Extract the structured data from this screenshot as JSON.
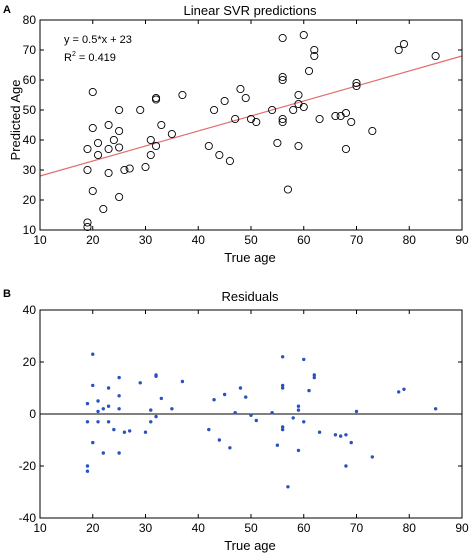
{
  "figure": {
    "panel_a_letter": "A",
    "panel_b_letter": "B"
  },
  "chart_data": [
    {
      "type": "scatter",
      "title": "Linear SVR predictions",
      "xlabel": "True age",
      "ylabel": "Predicted Age",
      "xlim": [
        10,
        90
      ],
      "ylim": [
        10,
        80
      ],
      "xticks": [
        10,
        20,
        30,
        40,
        50,
        60,
        70,
        80,
        90
      ],
      "yticks": [
        10,
        20,
        30,
        40,
        50,
        60,
        70,
        80
      ],
      "grid": false,
      "legend": "none",
      "marker": "open-circle",
      "marker_color": "#000000",
      "annotation_equation": "y = 0.5*x + 23",
      "annotation_r2_base": "R",
      "annotation_r2_exp": "2",
      "annotation_r2_value": " = 0.419",
      "fit_line": {
        "slope": 0.5,
        "intercept": 23,
        "color": "#e07070"
      },
      "points": [
        [
          19,
          12.5
        ],
        [
          19,
          11
        ],
        [
          19,
          30
        ],
        [
          19,
          37
        ],
        [
          20,
          56
        ],
        [
          20,
          44
        ],
        [
          20,
          23
        ],
        [
          21,
          35
        ],
        [
          21,
          39
        ],
        [
          22,
          17
        ],
        [
          23,
          45
        ],
        [
          23,
          37
        ],
        [
          23,
          29
        ],
        [
          24,
          40
        ],
        [
          25,
          50
        ],
        [
          25,
          43
        ],
        [
          25,
          37.5
        ],
        [
          25,
          21
        ],
        [
          26,
          30
        ],
        [
          27,
          30.5
        ],
        [
          29,
          50
        ],
        [
          30,
          31
        ],
        [
          31,
          35
        ],
        [
          31,
          40
        ],
        [
          32,
          54
        ],
        [
          32,
          53.5
        ],
        [
          32,
          38
        ],
        [
          33,
          45
        ],
        [
          35,
          42
        ],
        [
          37,
          55
        ],
        [
          42,
          38
        ],
        [
          43,
          50
        ],
        [
          44,
          35
        ],
        [
          45,
          53
        ],
        [
          46,
          33
        ],
        [
          47,
          47
        ],
        [
          48,
          57
        ],
        [
          49,
          54
        ],
        [
          50,
          47
        ],
        [
          51,
          46
        ],
        [
          54,
          50
        ],
        [
          55,
          39
        ],
        [
          56,
          74
        ],
        [
          56,
          61
        ],
        [
          56,
          60
        ],
        [
          56,
          47
        ],
        [
          56,
          46
        ],
        [
          57,
          23.5
        ],
        [
          58,
          50
        ],
        [
          59,
          55
        ],
        [
          59,
          52
        ],
        [
          59,
          38
        ],
        [
          60,
          75
        ],
        [
          60,
          51
        ],
        [
          61,
          63
        ],
        [
          62,
          70
        ],
        [
          62,
          68
        ],
        [
          63,
          47
        ],
        [
          66,
          48
        ],
        [
          67,
          48
        ],
        [
          68,
          49
        ],
        [
          68,
          37
        ],
        [
          69,
          46
        ],
        [
          70,
          59
        ],
        [
          70,
          58
        ],
        [
          73,
          43
        ],
        [
          78,
          70
        ],
        [
          79,
          72
        ],
        [
          85,
          68
        ]
      ]
    },
    {
      "type": "scatter",
      "title": "Residuals",
      "xlabel": "True age",
      "ylabel": "",
      "xlim": [
        10,
        90
      ],
      "ylim": [
        -40,
        40
      ],
      "xticks": [
        10,
        20,
        30,
        40,
        50,
        60,
        70,
        80,
        90
      ],
      "yticks": [
        -40,
        -20,
        0,
        20,
        40
      ],
      "grid": false,
      "legend": "none",
      "marker": "filled-dot",
      "marker_color": "#2a52be",
      "zero_line": true,
      "points": [
        [
          19,
          4
        ],
        [
          19,
          -3
        ],
        [
          19,
          -20
        ],
        [
          19,
          -22
        ],
        [
          20,
          23
        ],
        [
          20,
          11
        ],
        [
          20,
          -11
        ],
        [
          21,
          -3
        ],
        [
          21,
          1
        ],
        [
          21,
          5
        ],
        [
          22,
          -15
        ],
        [
          22,
          2
        ],
        [
          23,
          10
        ],
        [
          23,
          3
        ],
        [
          23,
          -3
        ],
        [
          24,
          -6
        ],
        [
          25,
          14
        ],
        [
          25,
          7
        ],
        [
          25,
          2
        ],
        [
          25,
          -15
        ],
        [
          26,
          -7
        ],
        [
          27,
          -6.5
        ],
        [
          29,
          12
        ],
        [
          30,
          -7
        ],
        [
          31,
          -3
        ],
        [
          31,
          1.5
        ],
        [
          32,
          15
        ],
        [
          32,
          14.5
        ],
        [
          32,
          -1
        ],
        [
          33,
          6
        ],
        [
          35,
          2
        ],
        [
          37,
          12.5
        ],
        [
          42,
          -6
        ],
        [
          43,
          5.5
        ],
        [
          44,
          -10
        ],
        [
          45,
          7.5
        ],
        [
          46,
          -13
        ],
        [
          47,
          0.5
        ],
        [
          48,
          10
        ],
        [
          49,
          6.5
        ],
        [
          50,
          -0.5
        ],
        [
          51,
          -2.5
        ],
        [
          54,
          0.5
        ],
        [
          55,
          -12
        ],
        [
          56,
          22
        ],
        [
          56,
          11
        ],
        [
          56,
          10
        ],
        [
          56,
          -5
        ],
        [
          56,
          -6
        ],
        [
          57,
          -28
        ],
        [
          58,
          -1.5
        ],
        [
          59,
          3
        ],
        [
          59,
          1.5
        ],
        [
          59,
          -14
        ],
        [
          60,
          21
        ],
        [
          60,
          -3
        ],
        [
          61,
          9
        ],
        [
          62,
          15
        ],
        [
          62,
          14
        ],
        [
          63,
          -7
        ],
        [
          66,
          -8
        ],
        [
          67,
          -8.5
        ],
        [
          68,
          -8
        ],
        [
          68,
          -20
        ],
        [
          69,
          -11
        ],
        [
          70,
          1
        ],
        [
          73,
          -16.5
        ],
        [
          78,
          8.5
        ],
        [
          79,
          9.5
        ],
        [
          85,
          2
        ]
      ]
    }
  ]
}
